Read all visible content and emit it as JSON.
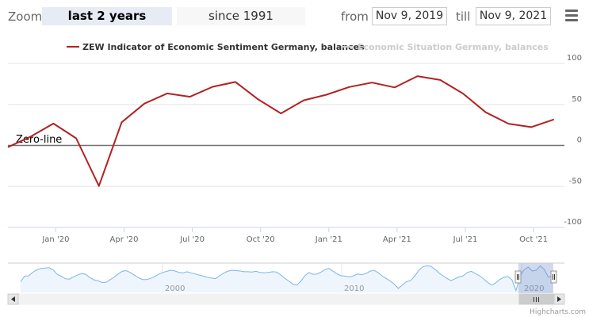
{
  "toolbar": {
    "zoom_label": "Zoom",
    "range_buttons": [
      "last 2 years",
      "since 1991"
    ],
    "from_label": "from",
    "from_value": "Nov 9, 2019",
    "till_label": "till",
    "till_value": "Nov 9, 2021"
  },
  "icons": {
    "menu": "hamburger-menu-icon",
    "scroll_left": "arrow-left-icon",
    "scroll_right": "arrow-right-icon",
    "scroll_grip": "grip-icon"
  },
  "colors": {
    "series1": "#b22222",
    "series2": "#cccccc",
    "zero_line": "#707070",
    "navigator_line": "#7cb5ec"
  },
  "credits": "Highcharts.com",
  "chart_data": {
    "type": "line",
    "series": [
      {
        "name": "ZEW Indicator of Economic Sentiment Germany, balances",
        "x": [
          "Nov 2019",
          "Dec 2019",
          "Jan 2020",
          "Feb 2020",
          "Mar 2020",
          "Apr 2020",
          "May 2020",
          "Jun 2020",
          "Jul 2020",
          "Aug 2020",
          "Sep 2020",
          "Oct 2020",
          "Nov 2020",
          "Dec 2020",
          "Jan 2021",
          "Feb 2021",
          "Mar 2021",
          "Apr 2021",
          "May 2021",
          "Jun 2021",
          "Jul 2021",
          "Aug 2021",
          "Sep 2021",
          "Oct 2021",
          "Nov 2021"
        ],
        "values": [
          -2.1,
          10.7,
          26.7,
          8.7,
          -49.5,
          28.2,
          51.0,
          63.4,
          59.3,
          71.5,
          77.4,
          56.1,
          39.0,
          55.0,
          61.8,
          71.2,
          76.6,
          70.7,
          84.4,
          79.8,
          63.3,
          40.4,
          26.5,
          22.3,
          31.7
        ],
        "visible": true
      },
      {
        "name": "Economic Situation Germany, balances",
        "visible": false
      }
    ],
    "y_ticks": [
      "100",
      "50",
      "0",
      "-50",
      "-100"
    ],
    "ylim": [
      -100,
      100
    ],
    "x_ticks": [
      "Jan '20",
      "Apr '20",
      "Jul '20",
      "Oct '20",
      "Jan '21",
      "Apr '21",
      "Jul '21",
      "Oct '21"
    ],
    "annotations": [
      {
        "text": "Zero-line",
        "y": 0
      }
    ],
    "legend_placement": "top-center",
    "grid": true,
    "navigator": {
      "labels": [
        "2000",
        "2010",
        "2020"
      ],
      "values": [
        -2,
        28,
        30,
        49,
        62,
        70,
        72,
        74,
        62,
        38,
        28,
        14,
        12,
        24,
        34,
        42,
        38,
        22,
        8,
        4,
        -6,
        -6,
        8,
        22,
        40,
        54,
        58,
        48,
        34,
        20,
        10,
        10,
        16,
        26,
        38,
        48,
        54,
        60,
        56,
        48,
        46,
        52,
        46,
        40,
        34,
        28,
        22,
        18,
        14,
        30,
        44,
        54,
        60,
        58,
        56,
        52,
        52,
        50,
        54,
        48,
        46,
        48,
        52,
        50,
        36,
        18,
        2,
        -14,
        -20,
        0,
        30,
        48,
        38,
        40,
        50,
        64,
        70,
        54,
        40,
        30,
        28,
        24,
        30,
        40,
        36,
        42,
        54,
        60,
        48,
        30,
        16,
        2,
        -14,
        -38,
        -20,
        -2,
        4,
        26,
        58,
        78,
        84,
        82,
        66,
        46,
        30,
        16,
        4,
        14,
        24,
        30,
        48,
        54,
        42,
        30,
        14,
        -6,
        -20,
        -8,
        10,
        22,
        26,
        8,
        -49.5,
        28,
        63,
        77,
        56,
        61,
        84,
        63,
        22,
        32
      ]
    }
  }
}
